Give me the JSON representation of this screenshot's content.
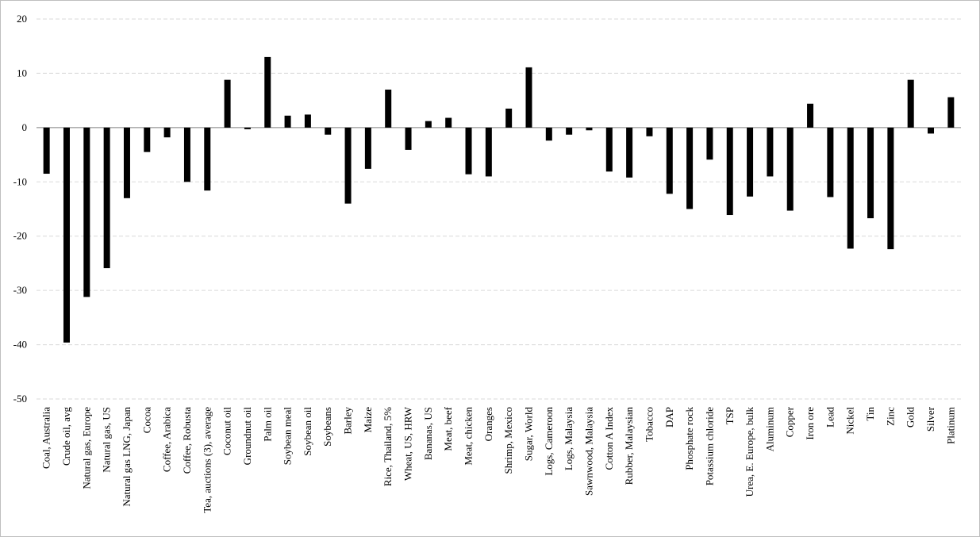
{
  "chart_data": {
    "type": "bar",
    "title": "",
    "xlabel": "",
    "ylabel": "",
    "ylim": [
      -50,
      20
    ],
    "yticks": [
      20,
      10,
      0,
      -10,
      -20,
      -30,
      -40,
      -50
    ],
    "grid": "horizontal dashed",
    "legend": "none",
    "bar_color": "#000000",
    "grid_color": "#d9d9d9",
    "categories": [
      "Coal, Australia",
      "Crude oil, avg",
      "Natural gas, Europe",
      "Natural gas, US",
      "Natural gas LNG, Japan",
      "Cocoa",
      "Coffee, Arabica",
      "Coffee, Robusta",
      "Tea, auctions (3), average",
      "Coconut oil",
      "Groundnut oil",
      "Palm oil",
      "Soybean meal",
      "Soybean oil",
      "Soybeans",
      "Barley",
      "Maize",
      "Rice, Thailand, 5%",
      "Wheat, US, HRW",
      "Bananas, US",
      "Meat, beef",
      "Meat, chicken",
      "Oranges",
      "Shrimp, Mexico",
      "Sugar, World",
      "Logs, Cameroon",
      "Logs, Malaysia",
      "Sawnwood, Malaysia",
      "Cotton A Index",
      "Rubber, Malaysian",
      "Tobacco",
      "DAP",
      "Phosphate rock",
      "Potassium chloride",
      "TSP",
      "Urea, E. Europe, bulk",
      "Aluminum",
      "Copper",
      "Iron ore",
      "Lead",
      "Nickel",
      "Tin",
      "Zinc",
      "Gold",
      "Silver",
      "Platinum"
    ],
    "values": [
      -8.5,
      -39.6,
      -31.2,
      -25.9,
      -13.0,
      -4.5,
      -1.8,
      -10.0,
      -11.6,
      8.8,
      -0.3,
      13.0,
      2.2,
      2.4,
      -1.3,
      -14.0,
      -7.6,
      7.0,
      -4.1,
      1.2,
      1.8,
      -8.6,
      -9.0,
      3.5,
      11.1,
      -2.4,
      -1.3,
      -0.5,
      -8.1,
      -9.2,
      -1.6,
      -12.2,
      -15.0,
      -5.9,
      -16.1,
      -12.7,
      -9.0,
      -15.3,
      4.4,
      -12.8,
      -22.3,
      -16.7,
      -22.4,
      8.8,
      -1.1,
      5.6
    ]
  }
}
